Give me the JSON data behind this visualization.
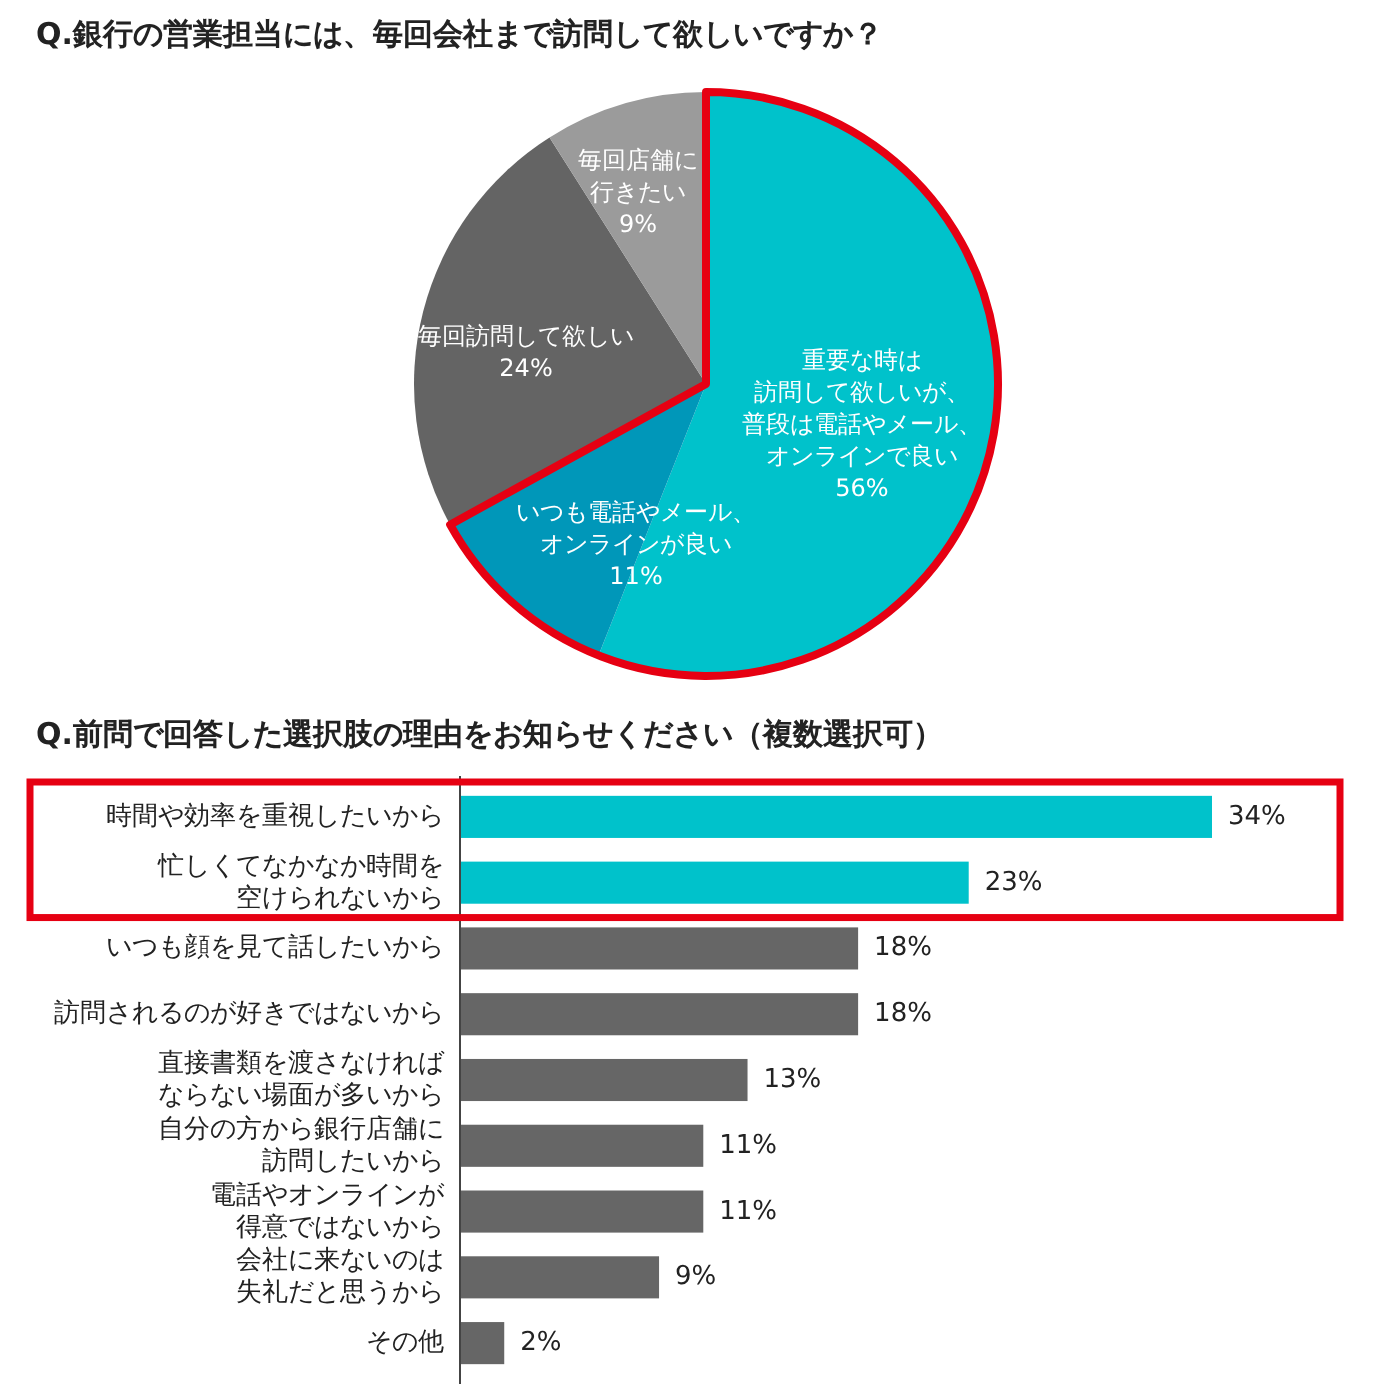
{
  "chart_data": [
    {
      "type": "pie",
      "title": "Q.銀行の営業担当には、毎回会社まで訪問して欲しいですか？",
      "categories": [
        "重要な時は訪問して欲しいが、普段は電話やメール、オンラインで良い",
        "いつも電話やメール、オンラインが良い",
        "毎回訪問して欲しい",
        "毎回店舗に行きたい"
      ],
      "values": [
        56,
        11,
        24,
        9
      ],
      "colors": [
        "#00c2cb",
        "#0097b9",
        "#646464",
        "#9b9b9b"
      ],
      "value_labels": [
        "56%",
        "11%",
        "24%",
        "9%"
      ]
    },
    {
      "type": "bar",
      "orientation": "horizontal",
      "title": "Q.前問で回答した選択肢の理由をお知らせください（複数選択可）",
      "categories": [
        "時間や効率を重視したいから",
        "忙しくてなかなか時間を空けられないから",
        "いつも顔を見て話したいから",
        "訪問されるのが好きではないから",
        "直接書類を渡さなければならない場面が多いから",
        "自分の方から銀行店舗に訪問したいから",
        "電話やオンラインが得意ではないから",
        "会社に来ないのは失礼だと思うから",
        "その他"
      ],
      "values": [
        34,
        23,
        18,
        18,
        13,
        11,
        11,
        9,
        2
      ],
      "colors": [
        "#00c2cb",
        "#00c2cb",
        "#666666",
        "#666666",
        "#666666",
        "#666666",
        "#666666",
        "#666666",
        "#666666"
      ],
      "value_labels": [
        "34%",
        "23%",
        "18%",
        "18%",
        "13%",
        "11%",
        "11%",
        "9%",
        "2%"
      ]
    }
  ]
}
